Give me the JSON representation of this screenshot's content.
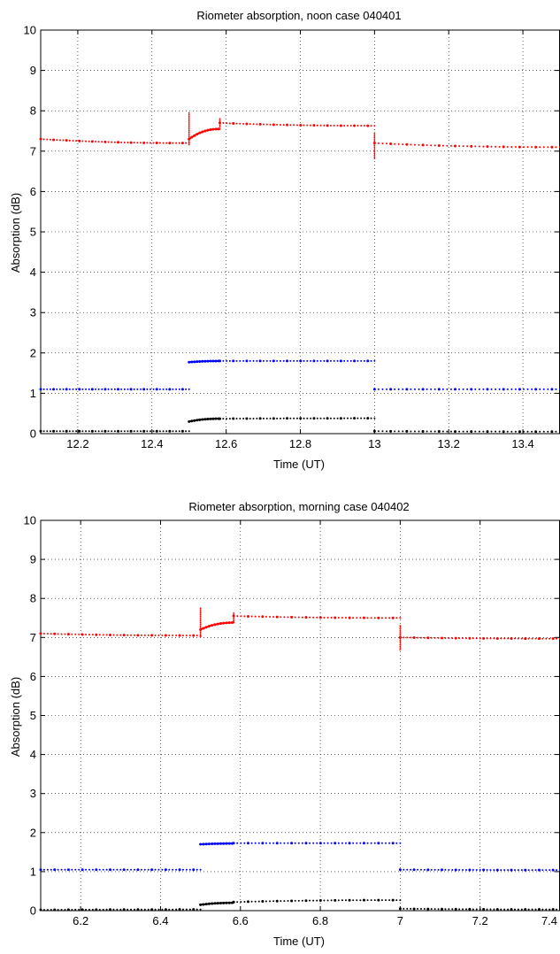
{
  "chart_data": [
    {
      "type": "scatter",
      "title": "Riometer absorption, noon case 040401",
      "xlabel": "Time (UT)",
      "ylabel": "Absorption (dB)",
      "xlim": [
        12.1,
        13.5
      ],
      "ylim": [
        0,
        10
      ],
      "xticks": [
        12.2,
        12.4,
        12.6,
        12.8,
        13,
        13.2,
        13.4
      ],
      "xtick_labels": [
        "12.2",
        "12.4",
        "12.6",
        "12.8",
        "13",
        "13.2",
        "13.4"
      ],
      "yticks": [
        0,
        1,
        2,
        3,
        4,
        5,
        6,
        7,
        8,
        9,
        10
      ],
      "ytick_labels": [
        "0",
        "1",
        "2",
        "3",
        "4",
        "5",
        "6",
        "7",
        "8",
        "9",
        "10"
      ],
      "grid": true,
      "series": [
        {
          "color": "#ff0000",
          "segments": [
            {
              "x0": 12.1,
              "x1": 12.5,
              "y0": 7.3,
              "y1": 7.2
            },
            {
              "x0": 12.5,
              "x1": 12.583,
              "y0": 7.3,
              "y1": 7.55,
              "spike_x": 12.5,
              "spike": [
                7.15,
                7.95
              ]
            },
            {
              "x0": 12.583,
              "x1": 13.0,
              "y0": 7.7,
              "y1": 7.63,
              "spike_x": 12.583,
              "spike": [
                7.6,
                7.8
              ]
            },
            {
              "x0": 13.0,
              "x1": 13.5,
              "y0": 7.2,
              "y1": 7.1,
              "spike_x": 13.0,
              "spike": [
                6.8,
                7.45
              ]
            }
          ]
        },
        {
          "color": "#0000ff",
          "segments": [
            {
              "x0": 12.1,
              "x1": 12.5,
              "y0": 1.1,
              "y1": 1.1
            },
            {
              "x0": 12.5,
              "x1": 12.583,
              "y0": 1.77,
              "y1": 1.8
            },
            {
              "x0": 12.583,
              "x1": 13.0,
              "y0": 1.8,
              "y1": 1.8
            },
            {
              "x0": 13.0,
              "x1": 13.5,
              "y0": 1.1,
              "y1": 1.1
            }
          ]
        },
        {
          "color": "#000000",
          "segments": [
            {
              "x0": 12.1,
              "x1": 12.5,
              "y0": 0.06,
              "y1": 0.06
            },
            {
              "x0": 12.5,
              "x1": 12.583,
              "y0": 0.3,
              "y1": 0.37
            },
            {
              "x0": 12.583,
              "x1": 13.0,
              "y0": 0.37,
              "y1": 0.38
            },
            {
              "x0": 13.0,
              "x1": 13.5,
              "y0": 0.06,
              "y1": 0.05
            }
          ]
        }
      ]
    },
    {
      "type": "scatter",
      "title": "Riometer absorption, morning case 040402",
      "xlabel": "Time (UT)",
      "ylabel": "Absorption (dB)",
      "xlim": [
        6.1,
        7.4
      ],
      "ylim": [
        0,
        10
      ],
      "xticks": [
        6.2,
        6.4,
        6.6,
        6.8,
        7,
        7.2,
        7.4
      ],
      "xtick_labels": [
        "6.2",
        "6.4",
        "6.6",
        "6.8",
        "7",
        "7.2",
        "7.4"
      ],
      "yticks": [
        0,
        1,
        2,
        3,
        4,
        5,
        6,
        7,
        8,
        9,
        10
      ],
      "ytick_labels": [
        "0",
        "1",
        "2",
        "3",
        "4",
        "5",
        "6",
        "7",
        "8",
        "9",
        "10"
      ],
      "grid": true,
      "series": [
        {
          "color": "#ff0000",
          "segments": [
            {
              "x0": 6.1,
              "x1": 6.5,
              "y0": 7.1,
              "y1": 7.05
            },
            {
              "x0": 6.5,
              "x1": 6.583,
              "y0": 7.2,
              "y1": 7.38,
              "spike_x": 6.5,
              "spike": [
                7.0,
                7.75
              ]
            },
            {
              "x0": 6.583,
              "x1": 7.0,
              "y0": 7.55,
              "y1": 7.5,
              "spike_x": 6.583,
              "spike": [
                7.4,
                7.62
              ]
            },
            {
              "x0": 7.0,
              "x1": 7.4,
              "y0": 7.0,
              "y1": 6.97,
              "spike_x": 7.0,
              "spike": [
                6.65,
                7.3
              ]
            }
          ]
        },
        {
          "color": "#0000ff",
          "segments": [
            {
              "x0": 6.1,
              "x1": 6.5,
              "y0": 1.05,
              "y1": 1.05
            },
            {
              "x0": 6.5,
              "x1": 6.583,
              "y0": 1.7,
              "y1": 1.72
            },
            {
              "x0": 6.583,
              "x1": 7.0,
              "y0": 1.73,
              "y1": 1.73
            },
            {
              "x0": 7.0,
              "x1": 7.4,
              "y0": 1.05,
              "y1": 1.04
            }
          ]
        },
        {
          "color": "#000000",
          "segments": [
            {
              "x0": 6.1,
              "x1": 6.5,
              "y0": 0.02,
              "y1": 0.03
            },
            {
              "x0": 6.5,
              "x1": 6.583,
              "y0": 0.15,
              "y1": 0.2
            },
            {
              "x0": 6.583,
              "x1": 7.0,
              "y0": 0.22,
              "y1": 0.27
            },
            {
              "x0": 7.0,
              "x1": 7.4,
              "y0": 0.05,
              "y1": 0.03
            }
          ]
        }
      ]
    }
  ]
}
